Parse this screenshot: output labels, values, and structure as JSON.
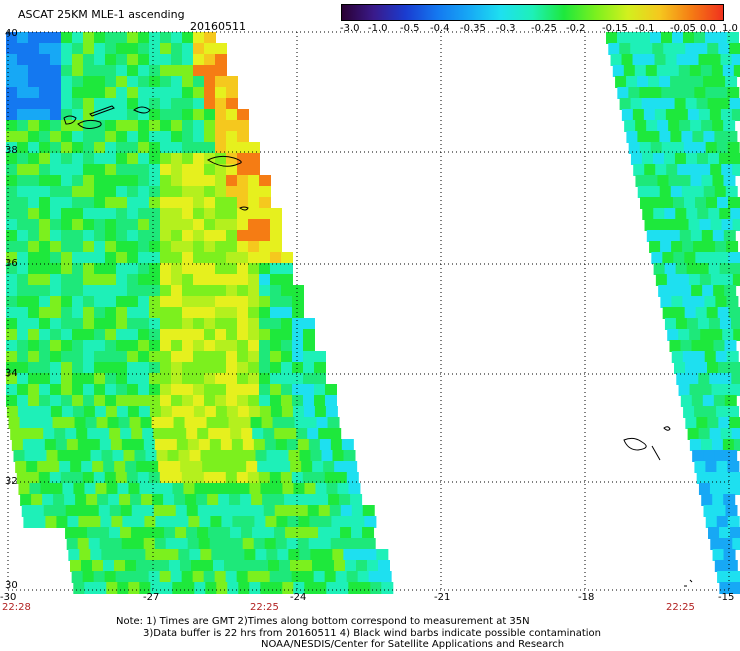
{
  "header": {
    "title": "ASCAT 25KM MLE-1 ascending",
    "date": "20160511"
  },
  "colorbar": {
    "labels": [
      "-3.0",
      "-1.0",
      "-0.5",
      "-0.4",
      "-0.35",
      "-0.3",
      "-0.25",
      "-0.2",
      "-0.15",
      "-0.1",
      "-0.05",
      "0.0",
      "1.0"
    ],
    "colors": [
      "#2a0033",
      "#3a1a8a",
      "#1a3cd0",
      "#1478f0",
      "#17a8f5",
      "#1ee0f0",
      "#1ef0b8",
      "#1ee83c",
      "#7cf01e",
      "#d2f01e",
      "#f5c81e",
      "#f57c14",
      "#f0321e"
    ]
  },
  "axes": {
    "x_ticks": [
      "-30",
      "-27",
      "-24",
      "-21",
      "-18",
      "-15"
    ],
    "y_ticks": [
      "40",
      "38",
      "36",
      "34",
      "32",
      "30"
    ],
    "lon_range": [
      -30,
      -15
    ],
    "lat_range": [
      30,
      40
    ],
    "grid": "dotted"
  },
  "times": {
    "left": "22:28",
    "middle": "22:25",
    "right": "22:25"
  },
  "notes": {
    "line1": "Note: 1) Times are GMT 2)Times along bottom correspond to measurement at 35N",
    "line2": "3)Data buffer is 22 hrs from 20160511 4) Black wind barbs indicate possible contamination",
    "line3": "NOAA/NESDIS/Center for Satellite Applications and Research"
  }
}
